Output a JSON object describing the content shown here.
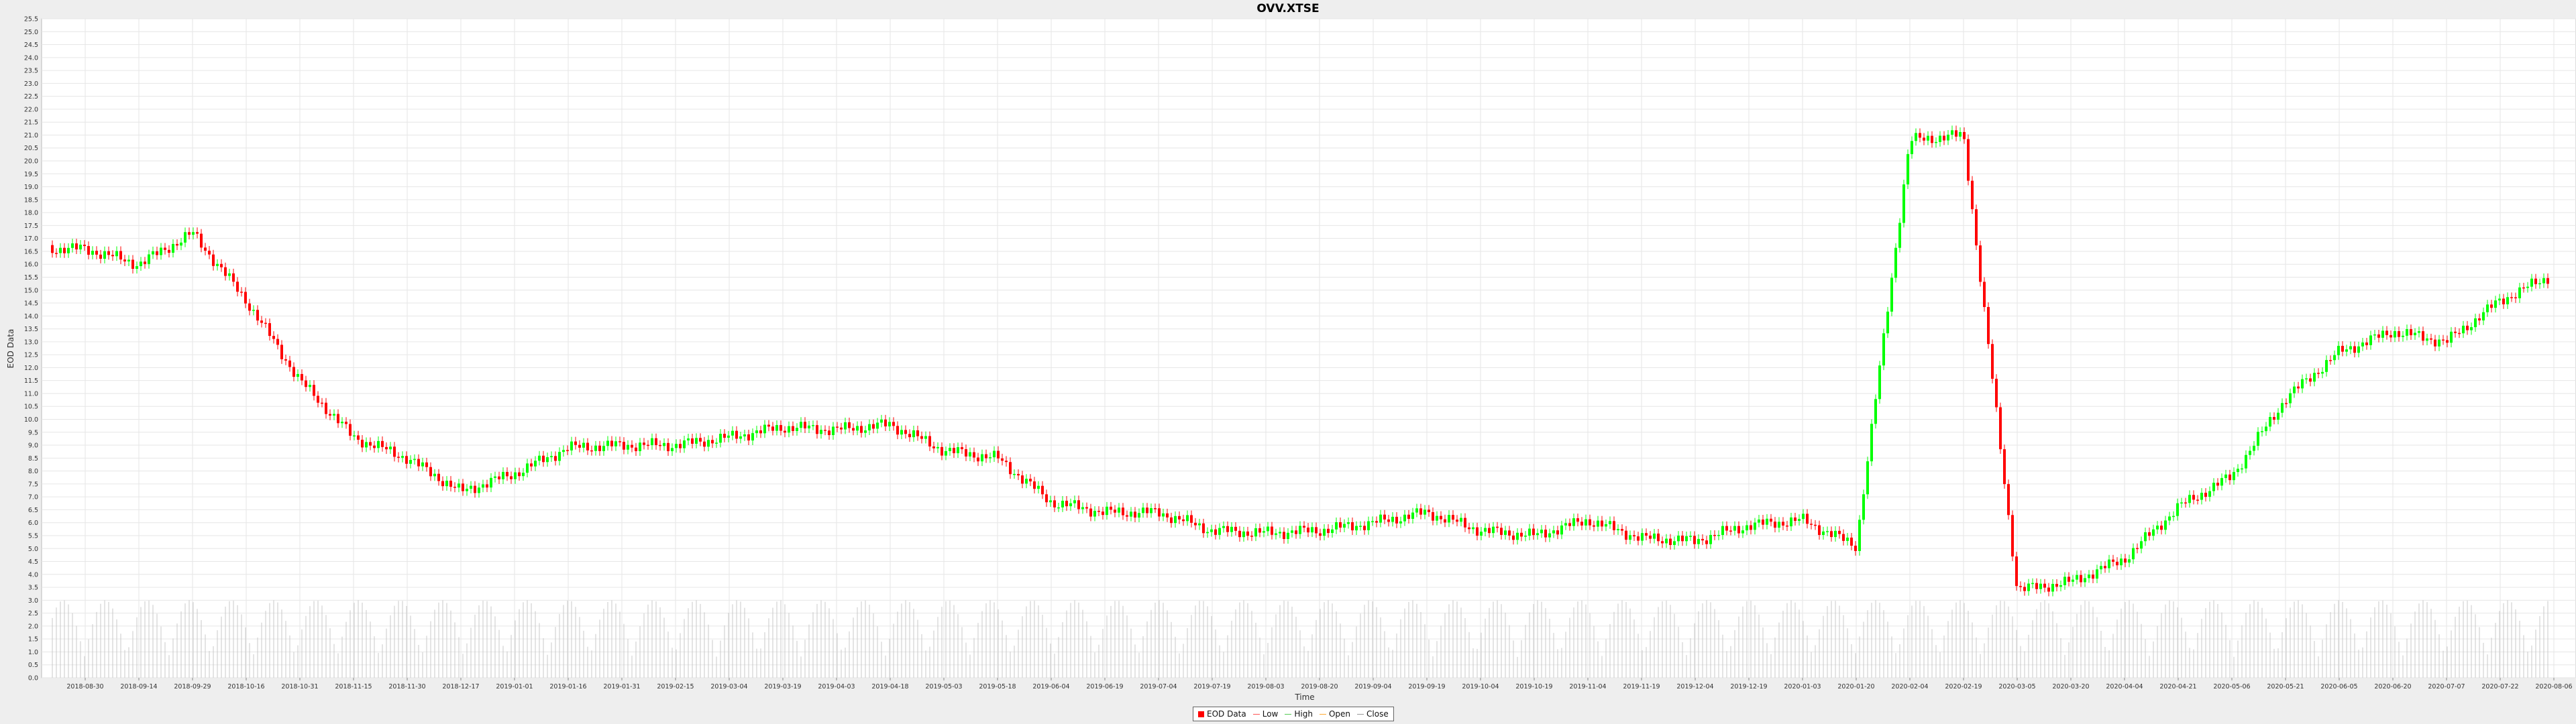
{
  "chart_data": {
    "type": "candlestick",
    "title": "OVV.XTSE",
    "xlabel": "Time",
    "ylabel": "EOD Data",
    "ylim": [
      0,
      25.5
    ],
    "y_tick_step": 0.5,
    "grid": true,
    "legend_position": "bottom-center",
    "x_ticks": [
      "2018-08-30",
      "2018-09-14",
      "2018-09-29",
      "2018-10-16",
      "2018-10-31",
      "2018-11-15",
      "2018-11-30",
      "2018-12-17",
      "2019-01-01",
      "2019-01-16",
      "2019-01-31",
      "2019-02-15",
      "2019-03-04",
      "2019-03-19",
      "2019-04-03",
      "2019-04-18",
      "2019-05-03",
      "2019-05-18",
      "2019-06-04",
      "2019-06-19",
      "2019-07-04",
      "2019-07-19",
      "2019-08-03",
      "2019-08-20",
      "2019-09-04",
      "2019-09-19",
      "2019-10-04",
      "2019-10-19",
      "2019-11-04",
      "2019-11-19",
      "2019-12-04",
      "2019-12-19",
      "2020-01-03",
      "2020-01-20",
      "2020-02-04",
      "2020-02-19",
      "2020-03-05",
      "2020-03-20",
      "2020-04-04",
      "2020-04-21",
      "2020-05-06",
      "2020-05-21",
      "2020-06-05",
      "2020-06-20",
      "2020-07-07",
      "2020-07-22",
      "2020-08-06"
    ],
    "closes": [
      {
        "date": "2018-08-30",
        "close": 16.6
      },
      {
        "date": "2018-09-14",
        "close": 16.0
      },
      {
        "date": "2018-09-29",
        "close": 17.2
      },
      {
        "date": "2018-10-16",
        "close": 14.6
      },
      {
        "date": "2018-10-31",
        "close": 11.5
      },
      {
        "date": "2018-11-15",
        "close": 9.3
      },
      {
        "date": "2018-11-30",
        "close": 8.5
      },
      {
        "date": "2018-12-17",
        "close": 7.2
      },
      {
        "date": "2019-01-01",
        "close": 7.9
      },
      {
        "date": "2019-01-16",
        "close": 8.9
      },
      {
        "date": "2019-01-31",
        "close": 9.0
      },
      {
        "date": "2019-02-15",
        "close": 9.0
      },
      {
        "date": "2019-03-04",
        "close": 9.3
      },
      {
        "date": "2019-03-19",
        "close": 9.7
      },
      {
        "date": "2019-04-03",
        "close": 9.6
      },
      {
        "date": "2019-04-18",
        "close": 9.8
      },
      {
        "date": "2019-05-03",
        "close": 8.8
      },
      {
        "date": "2019-05-18",
        "close": 8.5
      },
      {
        "date": "2019-06-04",
        "close": 6.8
      },
      {
        "date": "2019-06-19",
        "close": 6.4
      },
      {
        "date": "2019-07-04",
        "close": 6.4
      },
      {
        "date": "2019-07-19",
        "close": 5.7
      },
      {
        "date": "2019-08-03",
        "close": 5.6
      },
      {
        "date": "2019-08-20",
        "close": 5.7
      },
      {
        "date": "2019-09-04",
        "close": 6.0
      },
      {
        "date": "2019-09-19",
        "close": 6.4
      },
      {
        "date": "2019-10-04",
        "close": 5.7
      },
      {
        "date": "2019-10-19",
        "close": 5.5
      },
      {
        "date": "2019-11-04",
        "close": 6.1
      },
      {
        "date": "2019-11-19",
        "close": 5.4
      },
      {
        "date": "2019-12-04",
        "close": 5.3
      },
      {
        "date": "2019-12-19",
        "close": 5.9
      },
      {
        "date": "2020-01-03",
        "close": 6.1
      },
      {
        "date": "2020-01-20",
        "close": 5.1
      },
      {
        "date": "2020-02-04",
        "close": 20.8
      },
      {
        "date": "2020-02-19",
        "close": 21.0
      },
      {
        "date": "2020-03-05",
        "close": 3.4
      },
      {
        "date": "2020-03-20",
        "close": 3.7
      },
      {
        "date": "2020-04-04",
        "close": 4.6
      },
      {
        "date": "2020-04-21",
        "close": 6.6
      },
      {
        "date": "2020-05-06",
        "close": 7.8
      },
      {
        "date": "2020-05-21",
        "close": 10.8
      },
      {
        "date": "2020-06-05",
        "close": 12.6
      },
      {
        "date": "2020-06-20",
        "close": 13.4
      },
      {
        "date": "2020-07-07",
        "close": 13.0
      },
      {
        "date": "2020-07-22",
        "close": 14.6
      },
      {
        "date": "2020-08-06",
        "close": 15.6
      }
    ],
    "colors": {
      "up": "#00ff00",
      "down": "#ff0000",
      "grid": "#e6e6e6",
      "volume": "#c8c8c8"
    }
  },
  "legend": [
    {
      "label": "EOD Data",
      "kind": "swatch",
      "color": "#ff0000"
    },
    {
      "label": "Low",
      "kind": "line",
      "color": "#ff5555"
    },
    {
      "label": "High",
      "kind": "line",
      "color": "#55cc55"
    },
    {
      "label": "Open",
      "kind": "line",
      "color": "#ffaa33"
    },
    {
      "label": "Close",
      "kind": "line",
      "color": "#999999"
    }
  ]
}
